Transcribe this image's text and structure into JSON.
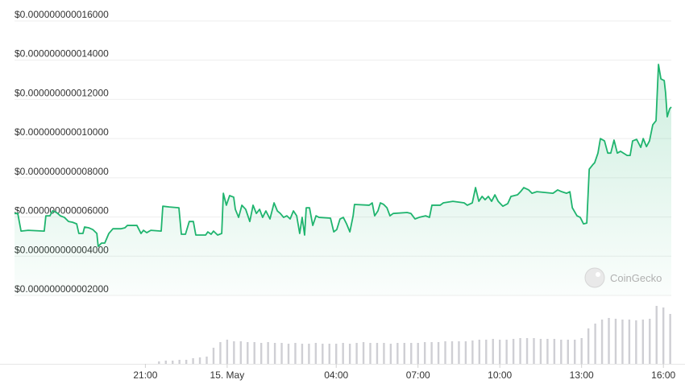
{
  "chart_data": {
    "type": "line",
    "watermark": "CoinGecko",
    "grid": true,
    "xlim": [
      16.2,
      40.29
    ],
    "xticks": [
      {
        "value": 21,
        "label": "21:00"
      },
      {
        "value": 24,
        "label": "15. May"
      },
      {
        "value": 28,
        "label": "04:00"
      },
      {
        "value": 31,
        "label": "07:00"
      },
      {
        "value": 34,
        "label": "10:00"
      },
      {
        "value": 37,
        "label": "13:00"
      },
      {
        "value": 40,
        "label": "16:00"
      }
    ],
    "ylim": [
      2e-12,
      1.6e-11
    ],
    "yticks": [
      {
        "value": 2e-12,
        "label": "$0.000000000002000"
      },
      {
        "value": 4e-12,
        "label": "$0.000000000004000"
      },
      {
        "value": 6e-12,
        "label": "$0.000000000006000"
      },
      {
        "value": 8e-12,
        "label": "$0.000000000008000"
      },
      {
        "value": 1e-11,
        "label": "$0.000000000010000"
      },
      {
        "value": 1.2e-11,
        "label": "$0.000000000012000"
      },
      {
        "value": 1.4e-11,
        "label": "$0.000000000014000"
      },
      {
        "value": 1.6e-11,
        "label": "$0.000000000016000"
      }
    ],
    "y2lim": [
      0,
      80
    ],
    "series": [
      {
        "color": "#1fb46e",
        "x": [
          16.2,
          16.32,
          16.44,
          16.7,
          17.29,
          17.35,
          17.5,
          17.59,
          17.74,
          17.88,
          18.03,
          18.18,
          18.33,
          18.48,
          18.56,
          18.71,
          18.77,
          18.92,
          19.07,
          19.22,
          19.27,
          19.39,
          19.51,
          19.66,
          19.81,
          20.1,
          20.25,
          20.34,
          20.69,
          20.84,
          20.93,
          21.05,
          21.2,
          21.58,
          21.64,
          21.88,
          22.23,
          22.32,
          22.47,
          22.61,
          22.76,
          22.85,
          23.21,
          23.29,
          23.41,
          23.5,
          23.65,
          23.8,
          23.86,
          23.97,
          24.09,
          24.24,
          24.3,
          24.42,
          24.54,
          24.68,
          24.83,
          24.95,
          25.07,
          25.19,
          25.3,
          25.42,
          25.57,
          25.72,
          25.84,
          25.95,
          26.07,
          26.19,
          26.31,
          26.43,
          26.55,
          26.66,
          26.75,
          26.84,
          26.9,
          27.02,
          27.14,
          27.26,
          27.37,
          27.79,
          27.91,
          28.02,
          28.14,
          28.26,
          28.38,
          28.5,
          28.62,
          28.67,
          29.21,
          29.32,
          29.41,
          29.53,
          29.62,
          29.74,
          29.86,
          29.97,
          30.09,
          30.6,
          30.74,
          30.89,
          31.04,
          31.28,
          31.42,
          31.51,
          31.81,
          31.93,
          32.28,
          32.69,
          32.81,
          32.99,
          33.11,
          33.23,
          33.35,
          33.46,
          33.58,
          33.7,
          33.82,
          33.94,
          34.11,
          34.29,
          34.41,
          34.65,
          34.76,
          34.88,
          35.06,
          35.18,
          35.36,
          35.95,
          36.12,
          36.27,
          36.45,
          36.57,
          36.66,
          36.83,
          36.95,
          37.07,
          37.19,
          37.28,
          37.4,
          37.48,
          37.6,
          37.69,
          37.84,
          37.96,
          38.07,
          38.19,
          38.31,
          38.43,
          38.67,
          38.78,
          38.87,
          39.02,
          39.17,
          39.26,
          39.38,
          39.49,
          39.61,
          39.73,
          39.82,
          39.91,
          40.03,
          40.08,
          40.14,
          40.23,
          40.29
        ],
        "values": [
          6.18e-12,
          6.18e-12,
          5.28e-12,
          5.32e-12,
          5.28e-12,
          6.06e-12,
          6.06e-12,
          6.31e-12,
          6.23e-12,
          6.06e-12,
          5.98e-12,
          5.77e-12,
          5.73e-12,
          5.65e-12,
          5.16e-12,
          5.16e-12,
          5.49e-12,
          5.45e-12,
          5.36e-12,
          5.16e-12,
          4.5e-12,
          4.67e-12,
          4.67e-12,
          5.16e-12,
          5.4e-12,
          5.4e-12,
          5.45e-12,
          5.57e-12,
          5.57e-12,
          5.16e-12,
          5.32e-12,
          5.2e-12,
          5.32e-12,
          5.28e-12,
          6.55e-12,
          6.51e-12,
          6.47e-12,
          5.12e-12,
          5.12e-12,
          5.77e-12,
          5.77e-12,
          5.08e-12,
          5.08e-12,
          5.24e-12,
          5.12e-12,
          5.28e-12,
          5.08e-12,
          5.16e-12,
          7.21e-12,
          6.6e-12,
          7.09e-12,
          7.01e-12,
          6.39e-12,
          5.98e-12,
          6.6e-12,
          6.39e-12,
          5.77e-12,
          6.6e-12,
          6.18e-12,
          6.39e-12,
          5.98e-12,
          6.31e-12,
          5.9e-12,
          6.72e-12,
          6.31e-12,
          6.18e-12,
          5.98e-12,
          6.06e-12,
          5.9e-12,
          6.31e-12,
          6.06e-12,
          5.16e-12,
          5.98e-12,
          5.08e-12,
          6.47e-12,
          6.47e-12,
          5.57e-12,
          6.06e-12,
          5.98e-12,
          5.94e-12,
          5.24e-12,
          5.36e-12,
          5.9e-12,
          5.98e-12,
          5.65e-12,
          5.24e-12,
          6.06e-12,
          6.64e-12,
          6.6e-12,
          6.72e-12,
          6.06e-12,
          6.31e-12,
          6.72e-12,
          6.64e-12,
          6.47e-12,
          6.06e-12,
          6.18e-12,
          6.23e-12,
          6.18e-12,
          5.9e-12,
          5.98e-12,
          6.06e-12,
          5.98e-12,
          6.6e-12,
          6.6e-12,
          6.72e-12,
          6.8e-12,
          6.72e-12,
          6.6e-12,
          6.72e-12,
          7.5e-12,
          6.8e-12,
          7.05e-12,
          6.88e-12,
          7.05e-12,
          6.8e-12,
          7.13e-12,
          6.8e-12,
          6.55e-12,
          6.68e-12,
          7.05e-12,
          7.13e-12,
          7.29e-12,
          7.5e-12,
          7.38e-12,
          7.21e-12,
          7.29e-12,
          7.21e-12,
          7.38e-12,
          7.29e-12,
          7.21e-12,
          7.29e-12,
          6.47e-12,
          6.06e-12,
          5.98e-12,
          5.65e-12,
          5.69e-12,
          8.44e-12,
          8.65e-12,
          8.77e-12,
          9.26e-12,
          1e-11,
          9.88e-12,
          9.26e-12,
          9.26e-12,
          9.92e-12,
          9.26e-12,
          9.35e-12,
          9.14e-12,
          9.14e-12,
          9.88e-12,
          9.96e-12,
          9.55e-12,
          1e-11,
          9.59e-12,
          9.88e-12,
          1.07e-11,
          1.091e-11,
          1.378e-11,
          1.304e-11,
          1.296e-11,
          1.234e-11,
          1.111e-11,
          1.152e-11,
          1.161e-11
        ]
      },
      {
        "type": "bar",
        "axis": "y2",
        "color": "#cfcfd4",
        "x": [
          21.5,
          21.75,
          22,
          22.25,
          22.5,
          22.75,
          23,
          23.25,
          23.5,
          23.75,
          24,
          24.25,
          24.5,
          24.75,
          25,
          25.25,
          25.5,
          25.75,
          26,
          26.25,
          26.5,
          26.75,
          27,
          27.25,
          27.5,
          27.75,
          28,
          28.25,
          28.5,
          28.75,
          29,
          29.25,
          29.5,
          29.75,
          30,
          30.25,
          30.5,
          30.75,
          31,
          31.25,
          31.5,
          31.75,
          32,
          32.25,
          32.5,
          32.75,
          33,
          33.25,
          33.5,
          33.75,
          34,
          34.25,
          34.5,
          34.75,
          35,
          35.25,
          35.5,
          35.75,
          36,
          36.25,
          36.5,
          36.75,
          37,
          37.25,
          37.5,
          37.75,
          38,
          38.25,
          38.5,
          38.75,
          39,
          39.25,
          39.5,
          39.75,
          40,
          40.25
        ],
        "values": [
          3,
          4,
          4,
          5,
          5,
          7,
          8,
          9,
          20,
          27,
          30,
          28,
          28,
          27,
          27,
          26,
          27,
          26,
          26,
          25,
          26,
          25,
          25,
          26,
          25,
          25,
          25,
          26,
          25,
          26,
          27,
          26,
          26,
          26,
          25,
          26,
          26,
          26,
          26,
          27,
          27,
          27,
          28,
          28,
          28,
          28,
          29,
          30,
          30,
          31,
          30,
          30,
          31,
          32,
          32,
          32,
          31,
          31,
          31,
          30,
          30,
          30,
          32,
          44,
          50,
          55,
          57,
          56,
          55,
          55,
          54,
          55,
          56,
          72,
          70,
          62
        ]
      }
    ]
  }
}
